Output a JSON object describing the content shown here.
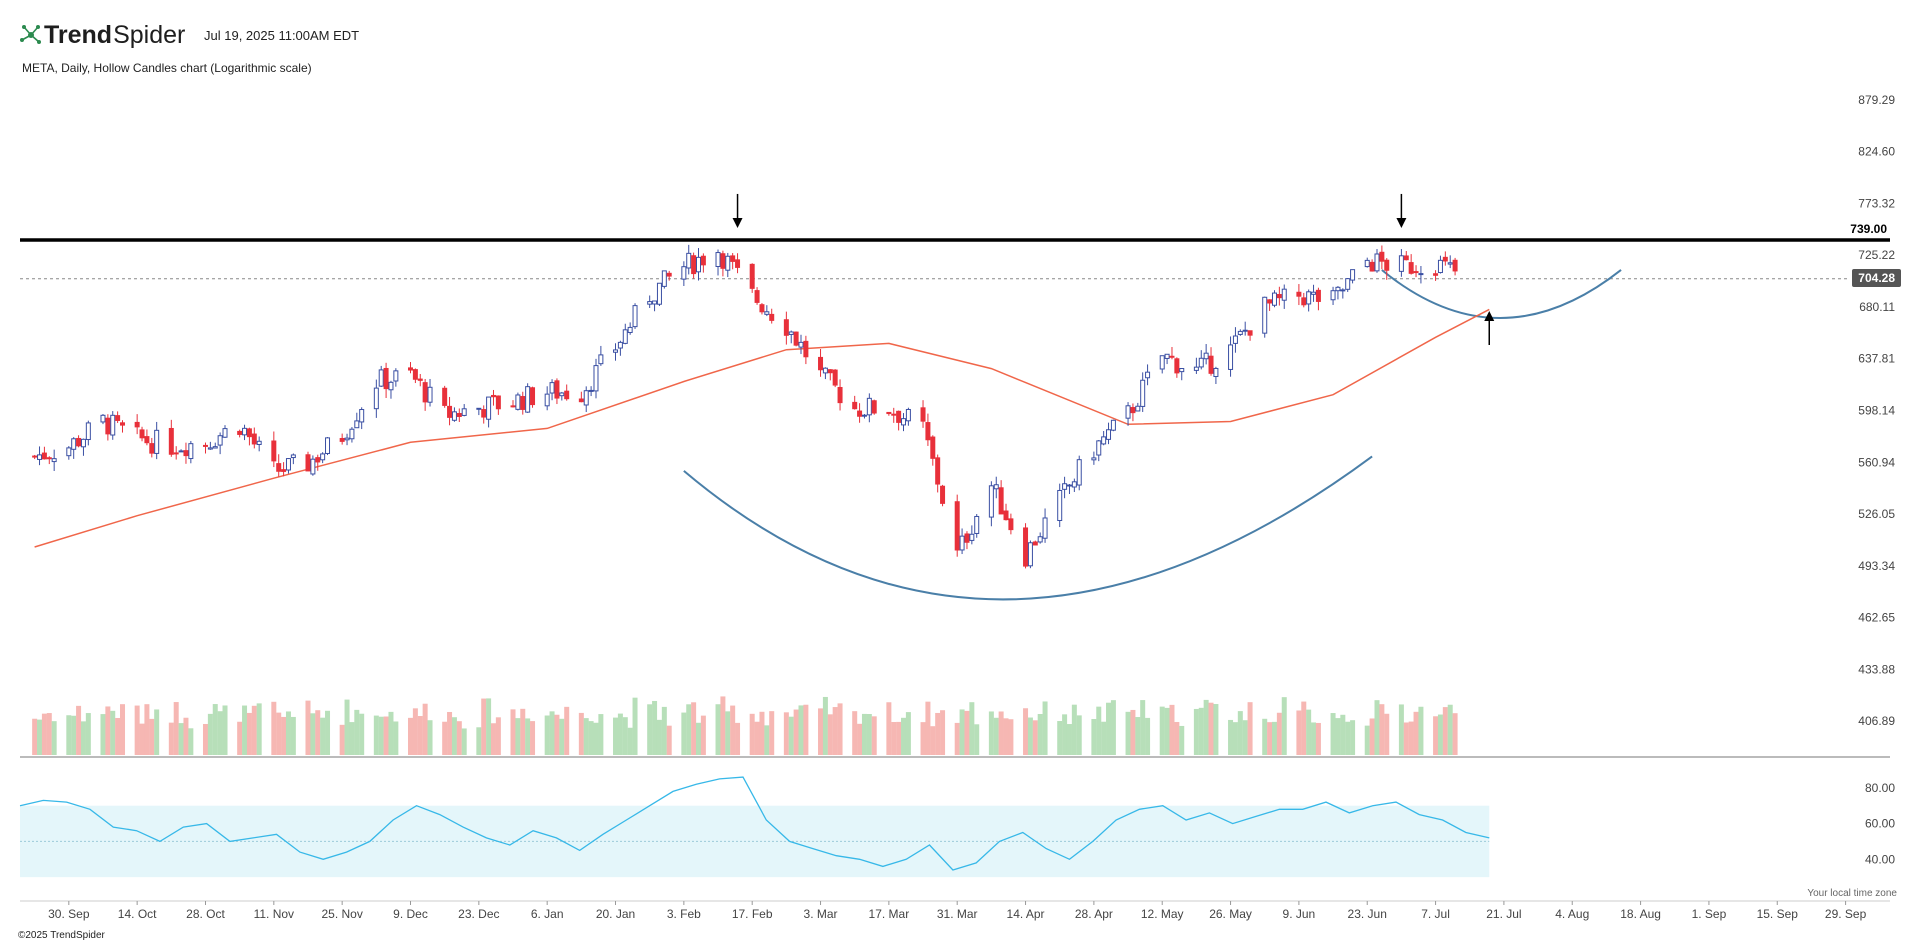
{
  "header": {
    "logo_bold": "Trend",
    "logo_regular": "Spider",
    "timestamp": "Jul 19, 2025 11:00AM EDT",
    "subtitle": "META, Daily, Hollow Candles chart (Logarithmic scale)"
  },
  "footer": {
    "copyright": "©2025 TrendSpider",
    "timezone_note": "Your local time zone"
  },
  "colors": {
    "up": "#3a4fa3",
    "down": "#e8303a",
    "ma": "#f0664a",
    "arc": "#4a7fa8",
    "vol_up": "#b7dfb9",
    "vol_down": "#f6b7b3",
    "rsi_line": "#37b8e8",
    "rsi_band": "#e4f6fa",
    "resistance": "#000000"
  },
  "chart_data": {
    "type": "candlestick",
    "symbol": "META",
    "interval": "Daily",
    "scale": "log",
    "price_axis_ticks": [
      "879.29",
      "824.60",
      "773.32",
      "725.22",
      "680.11",
      "637.81",
      "598.14",
      "560.94",
      "526.05",
      "493.34",
      "462.65",
      "433.88",
      "406.89"
    ],
    "x_axis_ticks": [
      "30. Sep",
      "14. Oct",
      "28. Oct",
      "11. Nov",
      "25. Nov",
      "9. Dec",
      "23. Dec",
      "6. Jan",
      "20. Jan",
      "3. Feb",
      "17. Feb",
      "3. Mar",
      "17. Mar",
      "31. Mar",
      "14. Apr",
      "28. Apr",
      "12. May",
      "26. May",
      "9. Jun",
      "23. Jun",
      "7. Jul",
      "21. Jul",
      "4. Aug",
      "18. Aug",
      "1. Sep",
      "15. Sep",
      "29. Sep"
    ],
    "ylim": [
      400,
      890
    ],
    "resistance_level": {
      "value": 739.0,
      "label": "739.00"
    },
    "last_price": {
      "value": 704.28,
      "label": "704.28"
    },
    "close_series": [
      {
        "date": "2024-09-23",
        "close": 565
      },
      {
        "date": "2024-09-30",
        "close": 572
      },
      {
        "date": "2024-10-07",
        "close": 590
      },
      {
        "date": "2024-10-14",
        "close": 578
      },
      {
        "date": "2024-10-21",
        "close": 573
      },
      {
        "date": "2024-10-28",
        "close": 575
      },
      {
        "date": "2024-11-04",
        "close": 588
      },
      {
        "date": "2024-11-11",
        "close": 555
      },
      {
        "date": "2024-11-18",
        "close": 560
      },
      {
        "date": "2024-11-25",
        "close": 580
      },
      {
        "date": "2024-12-02",
        "close": 620
      },
      {
        "date": "2024-12-09",
        "close": 625
      },
      {
        "date": "2024-12-16",
        "close": 595
      },
      {
        "date": "2024-12-23",
        "close": 600
      },
      {
        "date": "2024-12-30",
        "close": 605
      },
      {
        "date": "2025-01-06",
        "close": 612
      },
      {
        "date": "2025-01-13",
        "close": 612
      },
      {
        "date": "2025-01-20",
        "close": 647
      },
      {
        "date": "2025-01-27",
        "close": 690
      },
      {
        "date": "2025-02-03",
        "close": 715
      },
      {
        "date": "2025-02-10",
        "close": 730
      },
      {
        "date": "2025-02-17",
        "close": 690
      },
      {
        "date": "2025-02-24",
        "close": 665
      },
      {
        "date": "2025-03-03",
        "close": 625
      },
      {
        "date": "2025-03-10",
        "close": 600
      },
      {
        "date": "2025-03-17",
        "close": 600
      },
      {
        "date": "2025-03-24",
        "close": 585
      },
      {
        "date": "2025-03-31",
        "close": 500
      },
      {
        "date": "2025-04-07",
        "close": 545
      },
      {
        "date": "2025-04-14",
        "close": 500
      },
      {
        "date": "2025-04-21",
        "close": 535
      },
      {
        "date": "2025-04-28",
        "close": 570
      },
      {
        "date": "2025-05-05",
        "close": 595
      },
      {
        "date": "2025-05-12",
        "close": 640
      },
      {
        "date": "2025-05-19",
        "close": 628
      },
      {
        "date": "2025-05-26",
        "close": 645
      },
      {
        "date": "2025-06-02",
        "close": 680
      },
      {
        "date": "2025-06-09",
        "close": 690
      },
      {
        "date": "2025-06-16",
        "close": 685
      },
      {
        "date": "2025-06-23",
        "close": 720
      },
      {
        "date": "2025-06-30",
        "close": 715
      },
      {
        "date": "2025-07-07",
        "close": 718
      },
      {
        "date": "2025-07-14",
        "close": 704.28
      }
    ],
    "ma_series": [
      {
        "date": "2024-09-23",
        "value": 505
      },
      {
        "date": "2024-10-14",
        "value": 525
      },
      {
        "date": "2024-11-11",
        "value": 550
      },
      {
        "date": "2024-12-09",
        "value": 575
      },
      {
        "date": "2025-01-06",
        "value": 585
      },
      {
        "date": "2025-02-03",
        "value": 620
      },
      {
        "date": "2025-02-24",
        "value": 645
      },
      {
        "date": "2025-03-17",
        "value": 650
      },
      {
        "date": "2025-04-07",
        "value": 630
      },
      {
        "date": "2025-05-05",
        "value": 588
      },
      {
        "date": "2025-05-26",
        "value": 590
      },
      {
        "date": "2025-06-16",
        "value": 610
      },
      {
        "date": "2025-07-07",
        "value": 655
      },
      {
        "date": "2025-07-18",
        "value": 678
      }
    ],
    "annotations": {
      "arrows_down": [
        {
          "date": "2025-02-14"
        },
        {
          "date": "2025-06-30"
        }
      ],
      "arrows_up": [
        {
          "date": "2025-07-18"
        }
      ]
    },
    "rsi": {
      "ticks": [
        "80.00",
        "60.00",
        "40.00"
      ],
      "band": [
        30,
        70
      ],
      "values": [
        70,
        73,
        72,
        68,
        58,
        56,
        50,
        58,
        60,
        50,
        52,
        54,
        44,
        40,
        44,
        50,
        62,
        70,
        65,
        58,
        52,
        48,
        56,
        52,
        45,
        54,
        62,
        70,
        78,
        82,
        85,
        86,
        62,
        50,
        46,
        42,
        40,
        36,
        40,
        48,
        34,
        38,
        50,
        55,
        46,
        40,
        50,
        62,
        68,
        70,
        62,
        66,
        60,
        64,
        68,
        68,
        72,
        66,
        70,
        72,
        65,
        62,
        55,
        52
      ]
    }
  }
}
